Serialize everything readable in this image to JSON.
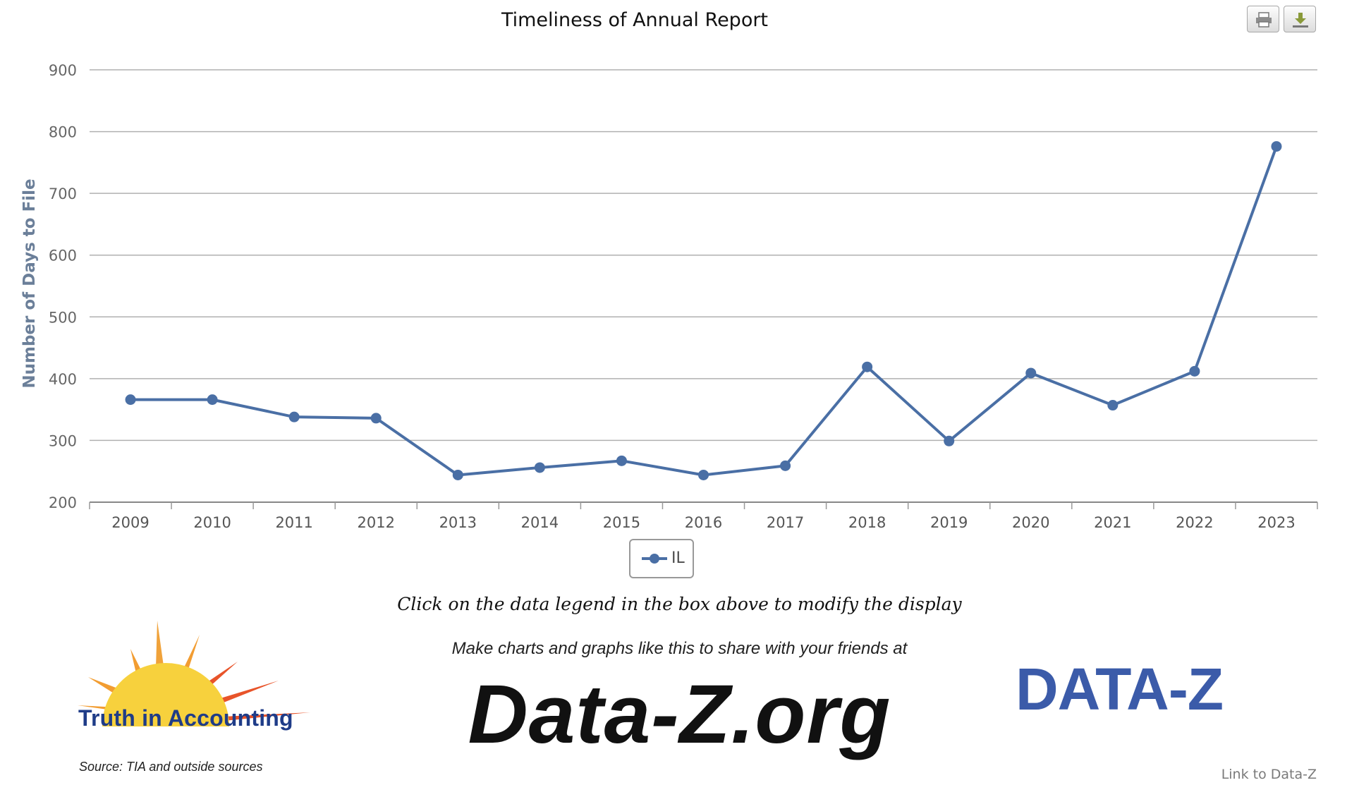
{
  "toolbar": {
    "print_icon": "printer-icon",
    "download_icon": "download-icon"
  },
  "chart_data": {
    "type": "line",
    "title": "Timeliness of Annual Report",
    "ylabel": "Number of Days to File",
    "xlabel": "",
    "categories": [
      "2009",
      "2010",
      "2011",
      "2012",
      "2013",
      "2014",
      "2015",
      "2016",
      "2017",
      "2018",
      "2019",
      "2020",
      "2021",
      "2022",
      "2023"
    ],
    "yticks": [
      200,
      300,
      400,
      500,
      600,
      700,
      800,
      900
    ],
    "ylim": [
      200,
      900
    ],
    "grid": true,
    "legend_position": "bottom-center",
    "series": [
      {
        "name": "IL",
        "color": "#4a6fa5",
        "values": [
          366,
          366,
          338,
          336,
          244,
          256,
          267,
          244,
          259,
          419,
          299,
          409,
          357,
          412,
          776
        ]
      }
    ]
  },
  "footer": {
    "hint": "Click on the data legend in the box above to modify the display",
    "promo": "Make charts and graphs like this to share with your friends at",
    "big_link": "Data-Z.org",
    "source": "Source: TIA and outside sources",
    "link_dataz": "Link to Data-Z",
    "tia_logo_text": "Truth in Accounting",
    "dataz_logo_text": "DATA-Z"
  }
}
